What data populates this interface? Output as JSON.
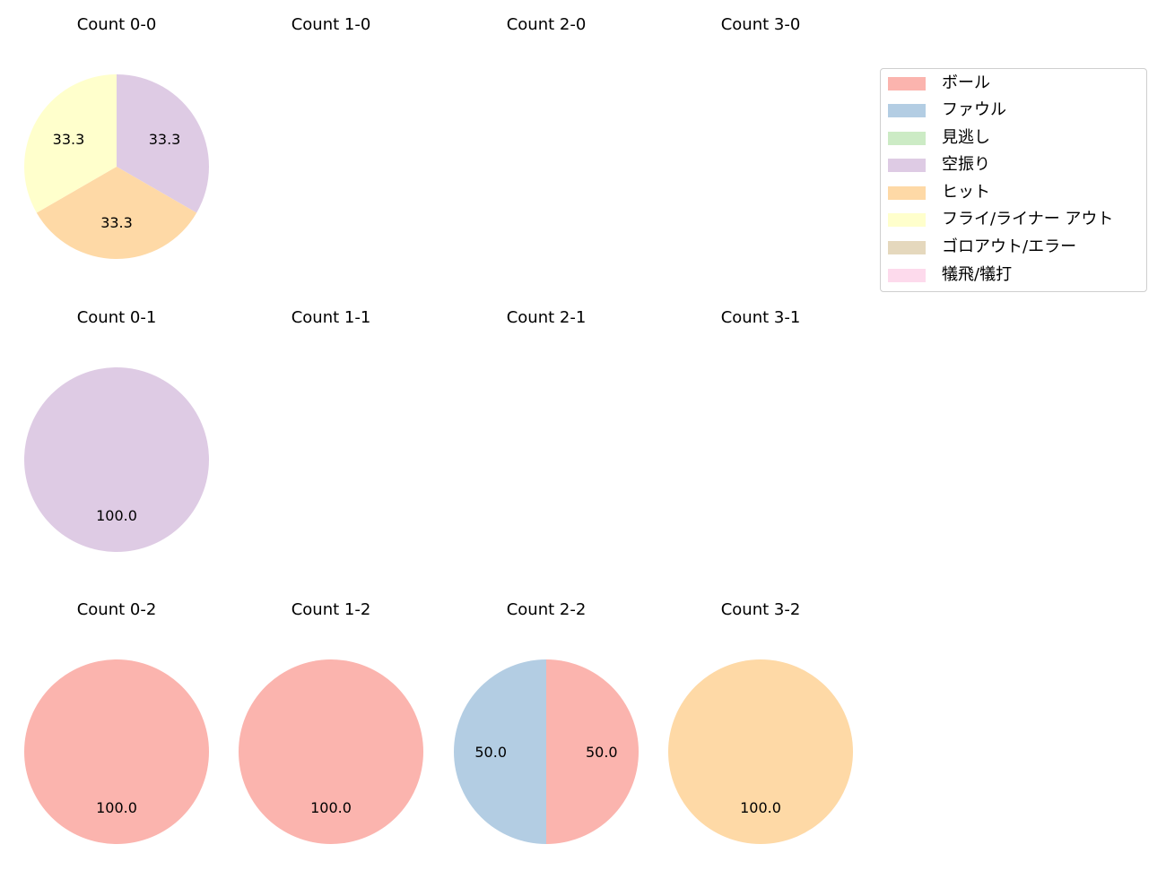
{
  "chart_data": {
    "type": "pie",
    "layout": {
      "rows": 3,
      "cols": 4,
      "legend_position": "upper right"
    },
    "categories": [
      "ボール",
      "ファウル",
      "見逃し",
      "空振り",
      "ヒット",
      "フライ/ライナー アウト",
      "ゴロアウト/エラー",
      "犠飛/犠打"
    ],
    "colors": [
      "#fbb4ae",
      "#b3cde3",
      "#ccebc5",
      "#decbe4",
      "#fed9a6",
      "#ffffcc",
      "#e5d8bd",
      "#fddaec"
    ],
    "subplots": [
      {
        "title": "Count 0-0",
        "row": 0,
        "col": 0,
        "slices": [
          {
            "category": "空振り",
            "value": 33.3,
            "label": "33.3"
          },
          {
            "category": "ヒット",
            "value": 33.3,
            "label": "33.3"
          },
          {
            "category": "フライ/ライナー アウト",
            "value": 33.3,
            "label": "33.3"
          }
        ]
      },
      {
        "title": "Count 1-0",
        "row": 0,
        "col": 1,
        "slices": []
      },
      {
        "title": "Count 2-0",
        "row": 0,
        "col": 2,
        "slices": []
      },
      {
        "title": "Count 3-0",
        "row": 0,
        "col": 3,
        "slices": []
      },
      {
        "title": "Count 0-1",
        "row": 1,
        "col": 0,
        "slices": [
          {
            "category": "空振り",
            "value": 100.0,
            "label": "100.0"
          }
        ]
      },
      {
        "title": "Count 1-1",
        "row": 1,
        "col": 1,
        "slices": []
      },
      {
        "title": "Count 2-1",
        "row": 1,
        "col": 2,
        "slices": []
      },
      {
        "title": "Count 3-1",
        "row": 1,
        "col": 3,
        "slices": []
      },
      {
        "title": "Count 0-2",
        "row": 2,
        "col": 0,
        "slices": [
          {
            "category": "ボール",
            "value": 100.0,
            "label": "100.0"
          }
        ]
      },
      {
        "title": "Count 1-2",
        "row": 2,
        "col": 1,
        "slices": [
          {
            "category": "ボール",
            "value": 100.0,
            "label": "100.0"
          }
        ]
      },
      {
        "title": "Count 2-2",
        "row": 2,
        "col": 2,
        "slices": [
          {
            "category": "ボール",
            "value": 50.0,
            "label": "50.0"
          },
          {
            "category": "ファウル",
            "value": 50.0,
            "label": "50.0"
          }
        ]
      },
      {
        "title": "Count 3-2",
        "row": 2,
        "col": 3,
        "slices": [
          {
            "category": "ヒット",
            "value": 100.0,
            "label": "100.0"
          }
        ]
      }
    ]
  },
  "legend": {
    "items": [
      {
        "label": "ボール",
        "color": "#fbb4ae"
      },
      {
        "label": "ファウル",
        "color": "#b3cde3"
      },
      {
        "label": "見逃し",
        "color": "#ccebc5"
      },
      {
        "label": "空振り",
        "color": "#decbe4"
      },
      {
        "label": "ヒット",
        "color": "#fed9a6"
      },
      {
        "label": "フライ/ライナー アウト",
        "color": "#ffffcc"
      },
      {
        "label": "ゴロアウト/エラー",
        "color": "#e5d8bd"
      },
      {
        "label": "犠飛/犠打",
        "color": "#fddaec"
      }
    ]
  }
}
